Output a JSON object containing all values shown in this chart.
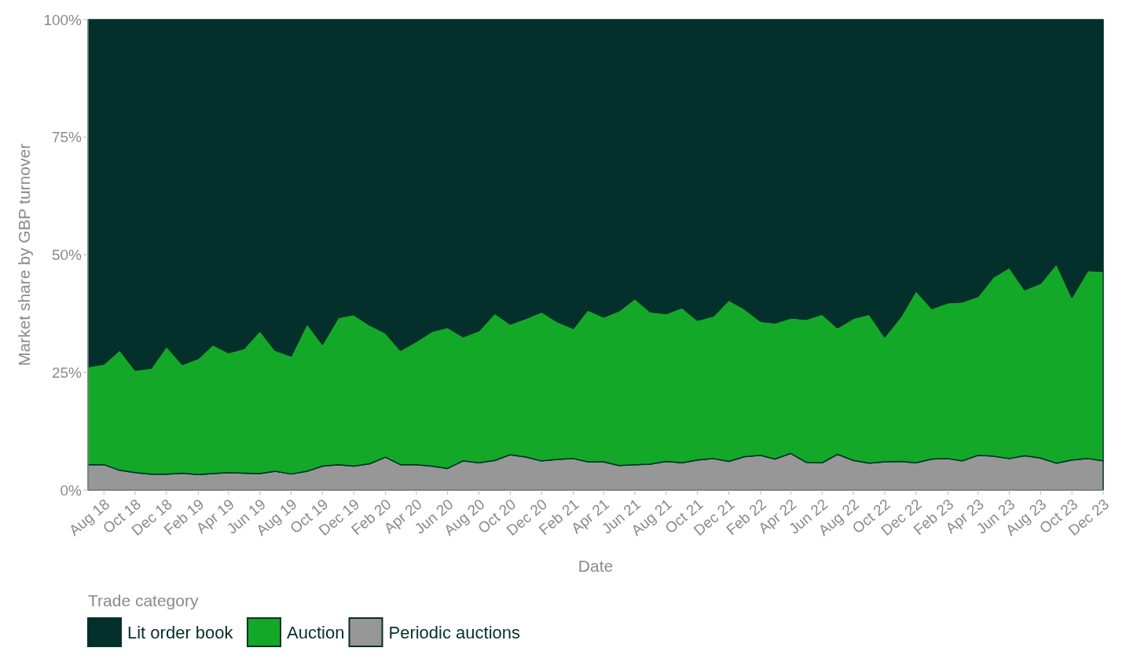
{
  "chart_data": {
    "type": "area",
    "stacked": true,
    "xlabel": "Date",
    "ylabel": "Market share by GBP turnover",
    "legend_title": "Trade category",
    "legend": "bottom",
    "x": [
      "2018-07",
      "2018-08",
      "2018-09",
      "2018-10",
      "2018-11",
      "2018-12",
      "2019-01",
      "2019-02",
      "2019-03",
      "2019-04",
      "2019-05",
      "2019-06",
      "2019-07",
      "2019-08",
      "2019-09",
      "2019-10",
      "2019-11",
      "2019-12",
      "2020-01",
      "2020-02",
      "2020-03",
      "2020-04",
      "2020-05",
      "2020-06",
      "2020-07",
      "2020-08",
      "2020-09",
      "2020-10",
      "2020-11",
      "2020-12",
      "2021-01",
      "2021-02",
      "2021-03",
      "2021-04",
      "2021-05",
      "2021-06",
      "2021-07",
      "2021-08",
      "2021-09",
      "2021-10",
      "2021-11",
      "2021-12",
      "2022-01",
      "2022-02",
      "2022-03",
      "2022-04",
      "2022-05",
      "2022-06",
      "2022-07",
      "2022-08",
      "2022-09",
      "2022-10",
      "2022-11",
      "2022-12",
      "2023-01",
      "2023-02",
      "2023-03",
      "2023-04",
      "2023-05",
      "2023-06",
      "2023-07",
      "2023-08",
      "2023-09",
      "2023-10",
      "2023-11",
      "2023-12"
    ],
    "xlim": [
      "2018-07",
      "2023-12"
    ],
    "xticks": [
      {
        "value": "2018-08",
        "label": "Aug 18"
      },
      {
        "value": "2018-10",
        "label": "Oct 18"
      },
      {
        "value": "2018-12",
        "label": "Dec 18"
      },
      {
        "value": "2019-02",
        "label": "Feb 19"
      },
      {
        "value": "2019-04",
        "label": "Apr 19"
      },
      {
        "value": "2019-06",
        "label": "Jun 19"
      },
      {
        "value": "2019-08",
        "label": "Aug 19"
      },
      {
        "value": "2019-10",
        "label": "Oct 19"
      },
      {
        "value": "2019-12",
        "label": "Dec 19"
      },
      {
        "value": "2020-02",
        "label": "Feb 20"
      },
      {
        "value": "2020-04",
        "label": "Apr 20"
      },
      {
        "value": "2020-06",
        "label": "Jun 20"
      },
      {
        "value": "2020-08",
        "label": "Aug 20"
      },
      {
        "value": "2020-10",
        "label": "Oct 20"
      },
      {
        "value": "2020-12",
        "label": "Dec 20"
      },
      {
        "value": "2021-02",
        "label": "Feb 21"
      },
      {
        "value": "2021-04",
        "label": "Apr 21"
      },
      {
        "value": "2021-06",
        "label": "Jun 21"
      },
      {
        "value": "2021-08",
        "label": "Aug 21"
      },
      {
        "value": "2021-10",
        "label": "Oct 21"
      },
      {
        "value": "2021-12",
        "label": "Dec 21"
      },
      {
        "value": "2022-02",
        "label": "Feb 22"
      },
      {
        "value": "2022-04",
        "label": "Apr 22"
      },
      {
        "value": "2022-06",
        "label": "Jun 22"
      },
      {
        "value": "2022-08",
        "label": "Aug 22"
      },
      {
        "value": "2022-10",
        "label": "Oct 22"
      },
      {
        "value": "2022-12",
        "label": "Dec 22"
      },
      {
        "value": "2023-02",
        "label": "Feb 23"
      },
      {
        "value": "2023-04",
        "label": "Apr 23"
      },
      {
        "value": "2023-06",
        "label": "Jun 23"
      },
      {
        "value": "2023-08",
        "label": "Aug 23"
      },
      {
        "value": "2023-10",
        "label": "Oct 23"
      },
      {
        "value": "2023-12",
        "label": "Dec 23"
      }
    ],
    "ylim": [
      0,
      100
    ],
    "yticks": [
      {
        "value": 0,
        "label": "0%"
      },
      {
        "value": 25,
        "label": "25%"
      },
      {
        "value": 50,
        "label": "50%"
      },
      {
        "value": 75,
        "label": "75%"
      },
      {
        "value": 100,
        "label": "100%"
      }
    ],
    "series": [
      {
        "name": "Periodic auctions",
        "color": "#979797",
        "values": [
          5.4,
          5.4,
          4.2,
          3.7,
          3.4,
          3.4,
          3.6,
          3.3,
          3.5,
          3.7,
          3.6,
          3.5,
          4.0,
          3.4,
          4.0,
          5.1,
          5.4,
          5.1,
          5.6,
          7.0,
          5.4,
          5.4,
          5.1,
          4.6,
          6.2,
          5.8,
          6.3,
          7.5,
          7.0,
          6.2,
          6.5,
          6.7,
          6.0,
          6.0,
          5.2,
          5.4,
          5.5,
          6.1,
          5.8,
          6.4,
          6.7,
          6.1,
          7.1,
          7.4,
          6.6,
          7.8,
          5.9,
          5.8,
          7.6,
          6.3,
          5.7,
          6.0,
          6.1,
          5.8,
          6.6,
          6.7,
          6.2,
          7.4,
          7.2,
          6.7,
          7.3,
          6.8,
          5.7,
          6.4,
          6.7,
          6.2
        ]
      },
      {
        "name": "Auction",
        "color": "#14a829",
        "values": [
          20.8,
          21.4,
          25.6,
          21.8,
          22.5,
          27.2,
          23.1,
          24.7,
          27.4,
          25.5,
          26.5,
          30.4,
          25.7,
          25.1,
          31.4,
          25.9,
          31.3,
          32.2,
          29.5,
          26.4,
          24.3,
          26.2,
          28.6,
          30.0,
          26.4,
          28.1,
          31.3,
          27.8,
          29.5,
          31.7,
          29.3,
          27.7,
          32.3,
          30.8,
          32.9,
          35.3,
          32.4,
          31.4,
          33.0,
          29.7,
          30.3,
          34.3,
          31.4,
          28.5,
          28.9,
          28.8,
          30.4,
          31.6,
          26.9,
          30.2,
          31.7,
          26.6,
          30.7,
          36.6,
          32.0,
          33.1,
          33.8,
          33.8,
          38.1,
          40.6,
          35.3,
          37.2,
          42.4,
          34.6,
          40.0,
          40.3
        ]
      },
      {
        "name": "Lit order book",
        "color": "#03302a",
        "values": [
          73.8,
          73.2,
          70.2,
          74.5,
          74.1,
          69.4,
          73.3,
          72.0,
          69.1,
          70.8,
          69.9,
          66.1,
          70.3,
          71.5,
          64.6,
          69.0,
          63.3,
          62.7,
          64.9,
          66.6,
          70.3,
          68.4,
          66.3,
          65.4,
          67.4,
          66.1,
          62.4,
          64.7,
          63.5,
          62.1,
          64.2,
          65.6,
          61.7,
          63.2,
          61.9,
          59.3,
          62.1,
          62.5,
          61.2,
          63.9,
          63.0,
          59.6,
          61.5,
          64.1,
          64.5,
          63.4,
          63.7,
          62.6,
          65.5,
          63.5,
          62.6,
          67.4,
          63.2,
          57.6,
          61.4,
          60.2,
          60.0,
          58.8,
          54.7,
          52.7,
          57.4,
          56.0,
          51.9,
          59.0,
          53.3,
          53.5
        ]
      }
    ]
  }
}
